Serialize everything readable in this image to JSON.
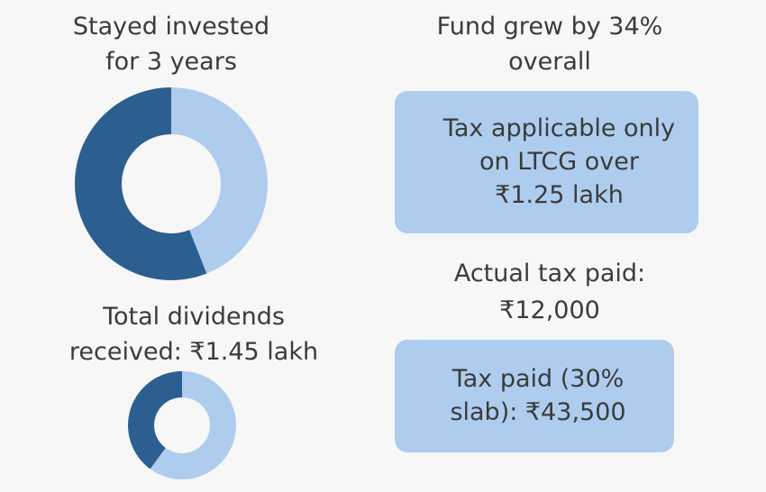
{
  "left_column": {
    "top_label": {
      "line1": "Stayed invested",
      "line2": "for 3 years"
    },
    "top_donut": {
      "primary_share": 0.56,
      "colors": {
        "primary": "#2c5f8f",
        "secondary": "#aecdee"
      }
    },
    "bottom_label": {
      "line1": "Total dividends",
      "line2": "received: ₹1.45 lakh"
    },
    "bottom_donut": {
      "primary_share": 0.4,
      "colors": {
        "primary": "#2c5f8f",
        "secondary": "#aecdee"
      }
    }
  },
  "right_column": {
    "top_label": {
      "line1": "Fund grew by 34%",
      "line2": "overall"
    },
    "card_ltcg": {
      "line1": "Tax applicable only",
      "line2": "on LTCG over",
      "line3": "₹1.25 lakh"
    },
    "middle_label": {
      "line1": "Actual tax paid:",
      "line2": "₹12,000"
    },
    "card_slab": {
      "line1": "Tax paid (30%",
      "line2": "slab): ₹43,500"
    }
  },
  "colors": {
    "background": "#f7f7f7",
    "text": "#3b3b3b",
    "card": "#aecdee"
  }
}
